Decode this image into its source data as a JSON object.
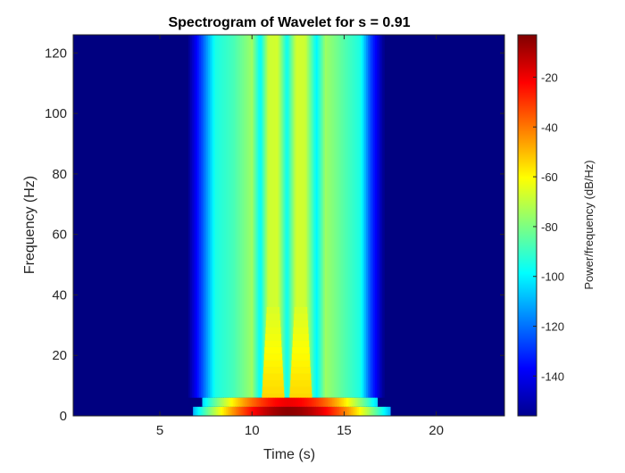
{
  "chart_data": {
    "type": "heatmap",
    "title": "Spectrogram of Wavelet for s = 0.91",
    "xlabel": "Time (s)",
    "ylabel": "Frequency (Hz)",
    "xlim": [
      0.3,
      23.7
    ],
    "ylim": [
      0,
      126
    ],
    "xticks": [
      5,
      10,
      15,
      20
    ],
    "yticks": [
      0,
      20,
      40,
      60,
      80,
      100,
      120
    ],
    "colormap": "jet",
    "colorbar": {
      "label": "Power/frequency (dB/Hz)",
      "clim": [
        -156,
        -3
      ],
      "ticks": [
        -20,
        -40,
        -60,
        -80,
        -100,
        -120,
        -140
      ]
    },
    "grid": false,
    "background_level_db": -156,
    "time_profile": [
      {
        "t": 6.5,
        "db": -156
      },
      {
        "t": 7.3,
        "db": -125
      },
      {
        "t": 8.0,
        "db": -95
      },
      {
        "t": 9.0,
        "db": -88
      },
      {
        "t": 10.0,
        "db": -75
      },
      {
        "t": 10.45,
        "db": -100
      },
      {
        "t": 10.9,
        "db": -68
      },
      {
        "t": 11.4,
        "db": -67
      },
      {
        "t": 11.9,
        "db": -98
      },
      {
        "t": 12.4,
        "db": -67
      },
      {
        "t": 12.9,
        "db": -68
      },
      {
        "t": 13.5,
        "db": -100
      },
      {
        "t": 14.0,
        "db": -75
      },
      {
        "t": 15.0,
        "db": -86
      },
      {
        "t": 15.9,
        "db": -95
      },
      {
        "t": 16.4,
        "db": -125
      },
      {
        "t": 17.2,
        "db": -156
      }
    ],
    "low_frequency_bands": [
      {
        "freq_range": [
          0,
          3
        ],
        "time_range": [
          6.8,
          17.5
        ],
        "peak_time": 12.0,
        "db_peak": -5,
        "db_edge": -110
      },
      {
        "freq_range": [
          3,
          6
        ],
        "time_range": [
          7.3,
          16.8
        ],
        "peak_time": 12.0,
        "db_peak": -20,
        "db_edge": -105
      }
    ]
  }
}
